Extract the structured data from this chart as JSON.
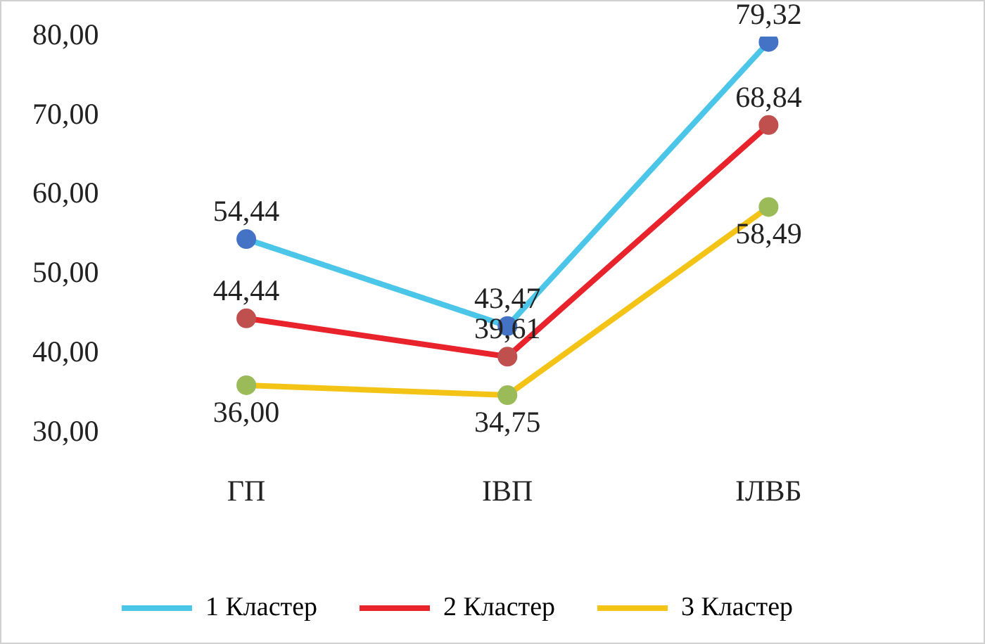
{
  "chart_data": {
    "type": "line",
    "categories": [
      "ГП",
      "ІВП",
      "ІЛВБ"
    ],
    "series": [
      {
        "name": "1 Кластер",
        "color": "#4bc6e8",
        "colors": [
          "#4472c4",
          "#4472c4",
          "#4472c4"
        ],
        "values": [
          54.44,
          43.47,
          79.32
        ],
        "value_labels": [
          "54,44",
          "43,47",
          "79,32"
        ]
      },
      {
        "name": "2 Кластер",
        "color": "#e8232b",
        "colors": [
          "#c0504d",
          "#c0504d",
          "#c0504d"
        ],
        "values": [
          44.44,
          39.61,
          68.84
        ],
        "value_labels": [
          "44,44",
          "39,61",
          "68,84"
        ]
      },
      {
        "name": "3 Кластер",
        "color": "#f3c316",
        "colors": [
          "#9bbb59",
          "#9bbb59",
          "#9bbb59"
        ],
        "values": [
          36.0,
          34.75,
          58.49
        ],
        "value_labels": [
          "36,00",
          "34,75",
          "58,49"
        ]
      }
    ],
    "ylim": [
      30,
      80
    ],
    "yticks": [
      {
        "value": 30,
        "label": "30,00"
      },
      {
        "value": 40,
        "label": "40,00"
      },
      {
        "value": 50,
        "label": "50,00"
      },
      {
        "value": 60,
        "label": "60,00"
      },
      {
        "value": 70,
        "label": "70,00"
      },
      {
        "value": 80,
        "label": "80,00"
      }
    ],
    "grid": false,
    "legend": "bottom",
    "marker": "circle",
    "line_style": "solid"
  }
}
